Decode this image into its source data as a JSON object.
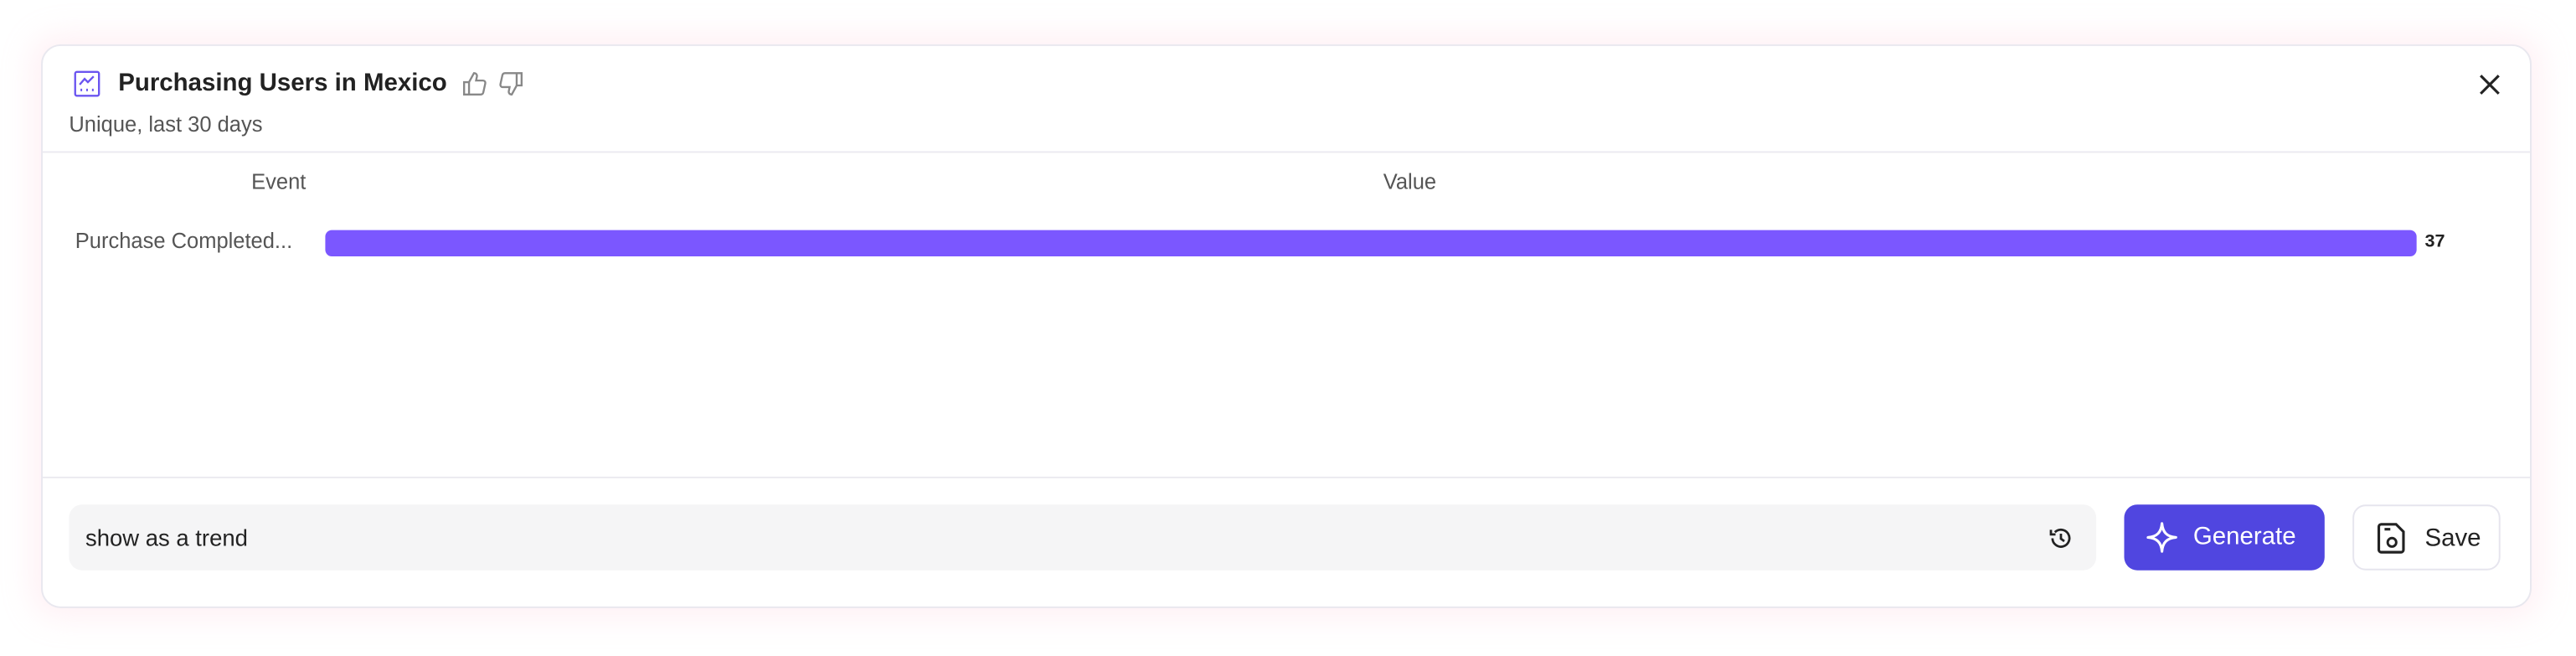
{
  "header": {
    "title": "Purchasing Users in Mexico",
    "subtitle": "Unique, last 30 days",
    "icons": [
      "line-chart-icon",
      "thumbs-up-icon",
      "thumbs-down-icon",
      "close-icon"
    ]
  },
  "chart_data": {
    "type": "bar",
    "orientation": "horizontal",
    "columns": [
      "Event",
      "Value"
    ],
    "categories": [
      "Purchase Completed..."
    ],
    "values": [
      37
    ],
    "xlim": [
      0,
      37
    ],
    "bar_color": "#7b57ff",
    "data_labels": [
      "37"
    ]
  },
  "footer": {
    "prompt_value": "show as a trend",
    "generate_label": "Generate",
    "save_label": "Save",
    "accent": "#5046e0"
  }
}
